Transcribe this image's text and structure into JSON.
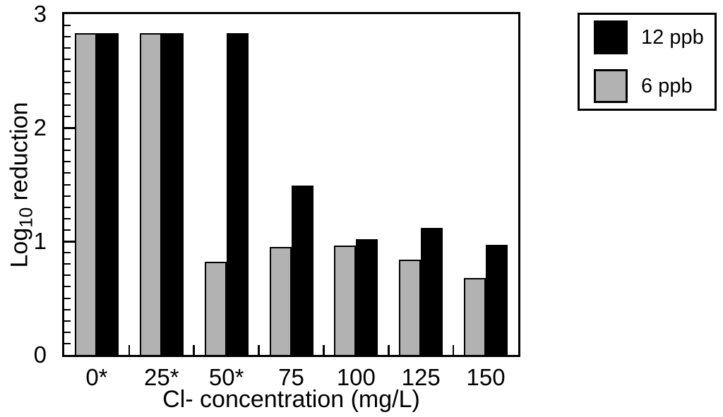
{
  "chart_data": {
    "type": "bar",
    "title": "",
    "categories": [
      "0*",
      "25*",
      "50*",
      "75",
      "100",
      "125",
      "150"
    ],
    "series": [
      {
        "name": "6 ppb",
        "color": "#b2b2b2",
        "values": [
          2.83,
          2.83,
          0.82,
          0.95,
          0.96,
          0.84,
          0.68
        ]
      },
      {
        "name": "12 ppb",
        "color": "#000000",
        "values": [
          2.83,
          2.83,
          2.83,
          1.49,
          1.02,
          1.12,
          0.97
        ]
      }
    ],
    "legend": [
      {
        "label": "12 ppb",
        "color": "#000000"
      },
      {
        "label": "6 ppb",
        "color": "#b2b2b2"
      }
    ],
    "legend_position": "top-right",
    "xlabel": "Cl- concentration (mg/L)",
    "ylabel": "Log10 reduction",
    "ylabel_parts": {
      "main": "Log",
      "sub": "10",
      "rest": " reduction"
    },
    "ylim": [
      0,
      3
    ],
    "y_major_ticks": [
      3,
      2,
      1,
      0
    ],
    "y_minor_tick_step": 0.1,
    "grid": false,
    "axis_color": "#000000",
    "background_color": "#ffffff"
  }
}
